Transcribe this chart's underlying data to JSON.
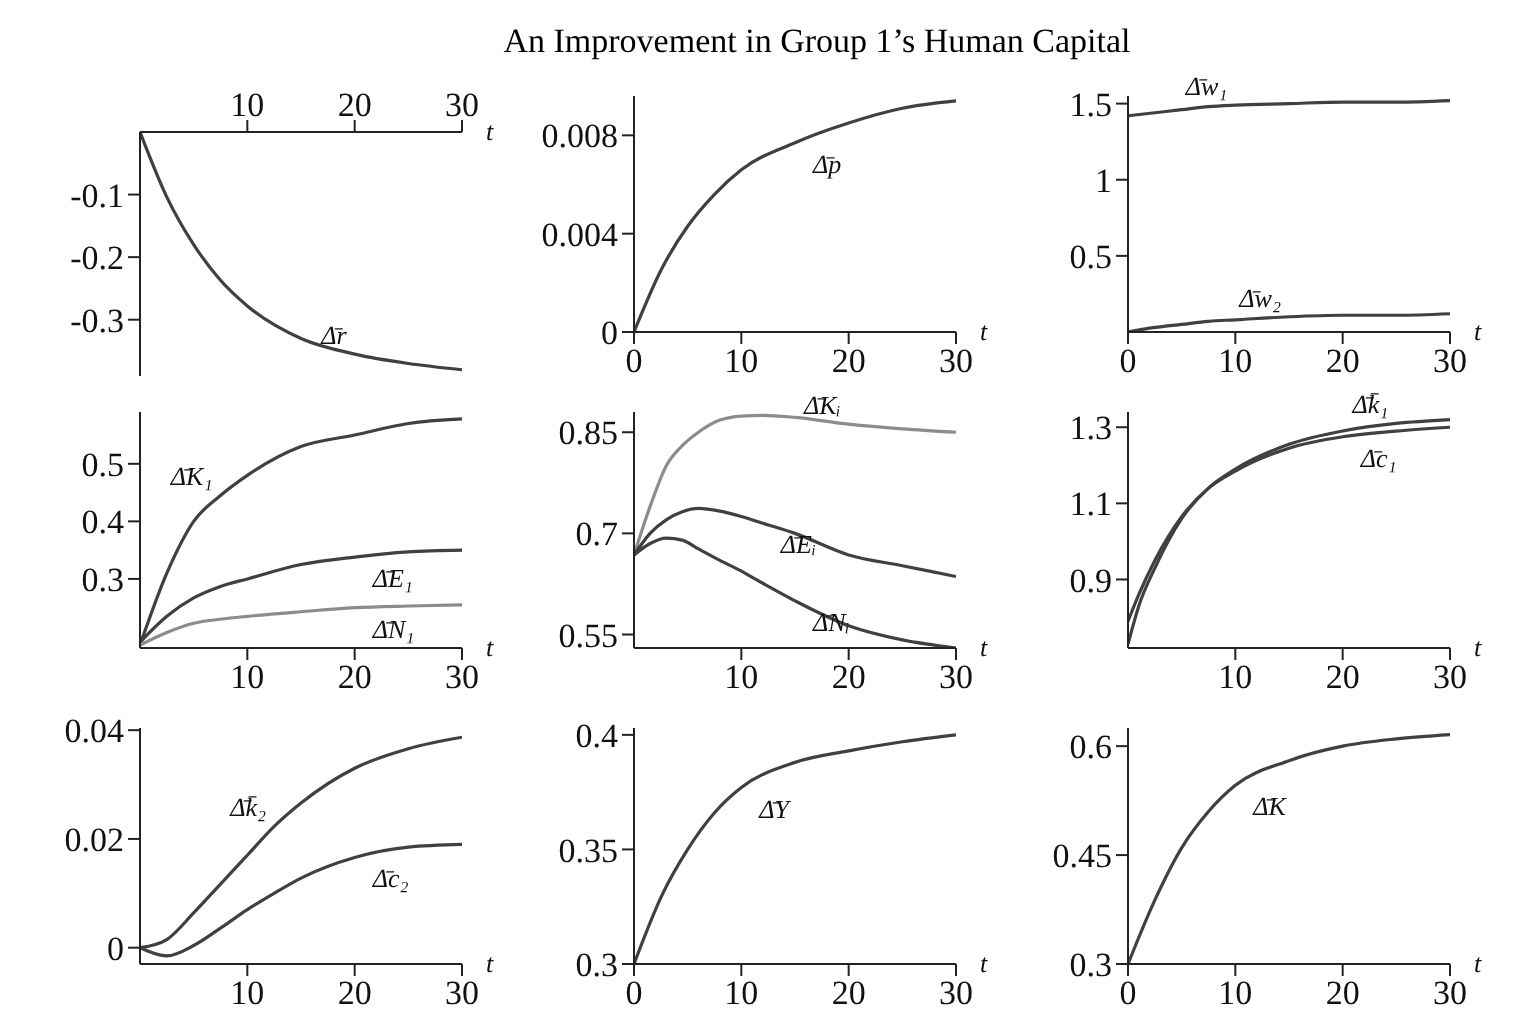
{
  "chart_data": [
    {
      "type": "line",
      "xlabel": "t",
      "x": [
        0,
        2.5,
        5,
        7.5,
        10,
        15,
        20,
        25,
        30
      ],
      "series": [
        {
          "color": "#404040",
          "values": [
            0,
            -0.104,
            -0.18,
            -0.237,
            -0.278,
            -0.33,
            -0.355,
            -0.37,
            -0.38
          ]
        }
      ],
      "xlim": [
        0,
        30
      ],
      "xticks": [
        10,
        20,
        30
      ],
      "ylim": [
        -0.39,
        0
      ],
      "yticks": [
        -0.1,
        -0.2,
        -0.3
      ],
      "annotations": [
        {
          "text": "Δ̄r",
          "x": 20,
          "y": -0.355
        }
      ]
    },
    {
      "type": "line",
      "title": "An Improvement in Group 1’s Human Capital",
      "xlabel": "t",
      "x": [
        0,
        2.5,
        5,
        7.5,
        10,
        15,
        20,
        25,
        30
      ],
      "series": [
        {
          "color": "#404040",
          "values": [
            0,
            0.0025,
            0.0043,
            0.0056,
            0.0066,
            0.0077,
            0.0085,
            0.0091,
            0.0094
          ]
        }
      ],
      "xlim": [
        0,
        30
      ],
      "xticks": [
        0,
        10,
        20,
        30
      ],
      "ylim": [
        0,
        0.0096
      ],
      "yticks": [
        0,
        0.004,
        0.008
      ],
      "annotations": [
        {
          "text": "Δ̄p",
          "x": 15,
          "y": 0.0077
        }
      ]
    },
    {
      "type": "line",
      "xlabel": "t",
      "x": [
        0,
        2.5,
        5,
        7.5,
        10,
        15,
        20,
        25,
        30
      ],
      "series": [
        {
          "color": "#404040",
          "values": [
            1.42,
            1.44,
            1.46,
            1.48,
            1.49,
            1.5,
            1.51,
            1.51,
            1.52
          ]
        },
        {
          "color": "#404040",
          "values": [
            0,
            0.03,
            0.05,
            0.07,
            0.08,
            0.1,
            0.11,
            0.11,
            0.12
          ]
        }
      ],
      "xlim": [
        0,
        30
      ],
      "xticks": [
        0,
        10,
        20,
        30
      ],
      "ylim": [
        0,
        1.55
      ],
      "yticks": [
        0.5,
        1,
        1.5
      ],
      "annotations": [
        {
          "text": "Δ̄w₁",
          "x": 10,
          "y": 1.49
        },
        {
          "text": "Δ̄w₂",
          "x": 15,
          "y": 0.1
        }
      ]
    },
    {
      "type": "line",
      "xlabel": "t",
      "x": [
        0,
        2.5,
        5,
        7.5,
        10,
        15,
        20,
        25,
        30
      ],
      "series": [
        {
          "color": "#404040",
          "values": [
            0.185,
            0.31,
            0.4,
            0.445,
            0.48,
            0.53,
            0.55,
            0.57,
            0.578
          ]
        },
        {
          "color": "#404040",
          "values": [
            0.19,
            0.235,
            0.267,
            0.287,
            0.3,
            0.325,
            0.338,
            0.347,
            0.35
          ]
        },
        {
          "color": "#8c8c8c",
          "values": [
            0.185,
            0.207,
            0.223,
            0.23,
            0.235,
            0.243,
            0.25,
            0.253,
            0.255
          ]
        }
      ],
      "xlim": [
        0,
        30
      ],
      "xticks": [
        10,
        20,
        30
      ],
      "ylim": [
        0.18,
        0.59
      ],
      "yticks": [
        0.3,
        0.4,
        0.5
      ],
      "annotations": [
        {
          "text": "Δ̄K₁",
          "x": 7.5,
          "y": 0.445
        },
        {
          "text": "Δ̄E₁",
          "x": 20,
          "y": 0.338
        },
        {
          "text": "Δ̄N₁",
          "x": 20,
          "y": 0.25
        }
      ]
    },
    {
      "type": "line",
      "xlabel": "t",
      "x": [
        0,
        1.5,
        3,
        4.5,
        6,
        8,
        10,
        12,
        15,
        20,
        25,
        30
      ],
      "series": [
        {
          "color": "#8c8c8c",
          "values": [
            0.668,
            0.74,
            0.8,
            0.83,
            0.85,
            0.868,
            0.874,
            0.875,
            0.872,
            0.862,
            0.855,
            0.85
          ]
        },
        {
          "color": "#404040",
          "values": [
            0.668,
            0.7,
            0.72,
            0.732,
            0.737,
            0.733,
            0.725,
            0.715,
            0.7,
            0.668,
            0.652,
            0.636
          ]
        },
        {
          "color": "#404040",
          "values": [
            0.668,
            0.685,
            0.693,
            0.69,
            0.677,
            0.66,
            0.644,
            0.626,
            0.6,
            0.563,
            0.542,
            0.53
          ]
        }
      ],
      "xlim": [
        0,
        30
      ],
      "xticks": [
        10,
        20,
        30
      ],
      "ylim": [
        0.53,
        0.88
      ],
      "yticks": [
        0.55,
        0.7,
        0.85
      ],
      "annotations": [
        {
          "text": "Δ̄Kᵢ",
          "x": 20,
          "y": 0.862
        },
        {
          "text": "Δ̄Eᵢ",
          "x": 12,
          "y": 0.715
        },
        {
          "text": "Δ̄Nᵢ",
          "x": 15,
          "y": 0.6
        }
      ]
    },
    {
      "type": "line",
      "xlabel": "t",
      "x": [
        0,
        1,
        2.5,
        5,
        7.5,
        10,
        15,
        20,
        25,
        30
      ],
      "series": [
        {
          "color": "#404040",
          "values": [
            0.73,
            0.83,
            0.93,
            1.06,
            1.14,
            1.19,
            1.255,
            1.29,
            1.31,
            1.32
          ]
        },
        {
          "color": "#404040",
          "values": [
            0.79,
            0.86,
            0.95,
            1.065,
            1.14,
            1.185,
            1.245,
            1.275,
            1.29,
            1.3
          ]
        }
      ],
      "xlim": [
        0,
        30
      ],
      "xticks": [
        10,
        20,
        30
      ],
      "ylim": [
        0.72,
        1.34
      ],
      "yticks": [
        0.9,
        1.1,
        1.3
      ],
      "annotations": [
        {
          "text": "Δ̄k̄₁",
          "x": 25,
          "y": 1.31
        },
        {
          "text": "Δ̄c₁",
          "x": 20,
          "y": 1.275
        }
      ]
    },
    {
      "type": "line",
      "xlabel": "t",
      "x": [
        0,
        2.5,
        5,
        7.5,
        10,
        12.5,
        15,
        20,
        25,
        30
      ],
      "series": [
        {
          "color": "#404040",
          "values": [
            0,
            0.0015,
            0.0064,
            0.0117,
            0.017,
            0.0223,
            0.0266,
            0.033,
            0.0366,
            0.0387
          ]
        },
        {
          "color": "#404040",
          "values": [
            0,
            -0.0015,
            0.0004,
            0.0036,
            0.007,
            0.01,
            0.0128,
            0.0166,
            0.0185,
            0.019
          ]
        }
      ],
      "xlim": [
        0,
        30
      ],
      "xticks": [
        10,
        20,
        30
      ],
      "ylim": [
        -0.003,
        0.0404
      ],
      "yticks": [
        0,
        0.02,
        0.04
      ],
      "annotations": [
        {
          "text": "Δ̄k̄₂",
          "x": 12.5,
          "y": 0.0223
        },
        {
          "text": "Δ̄c₂",
          "x": 20,
          "y": 0.0166
        }
      ]
    },
    {
      "type": "line",
      "xlabel": "t",
      "x": [
        0,
        2.5,
        5,
        7.5,
        10,
        15,
        20,
        25,
        30
      ],
      "series": [
        {
          "color": "#404040",
          "values": [
            0.3,
            0.329,
            0.35,
            0.366,
            0.377,
            0.388,
            0.393,
            0.397,
            0.4
          ]
        }
      ],
      "xlim": [
        0,
        30
      ],
      "xticks": [
        0,
        10,
        20,
        30
      ],
      "ylim": [
        0.3,
        0.403
      ],
      "yticks": [
        0.3,
        0.35,
        0.4
      ],
      "annotations": [
        {
          "text": "Δ̄Y",
          "x": 10,
          "y": 0.377
        }
      ]
    },
    {
      "type": "line",
      "xlabel": "t",
      "x": [
        0,
        2.5,
        5,
        7.5,
        10,
        15,
        20,
        25,
        30
      ],
      "series": [
        {
          "color": "#404040",
          "values": [
            0.3,
            0.388,
            0.46,
            0.51,
            0.546,
            0.58,
            0.6,
            0.61,
            0.616
          ]
        }
      ],
      "xlim": [
        0,
        30
      ],
      "xticks": [
        0,
        10,
        20,
        30
      ],
      "ylim": [
        0.3,
        0.625
      ],
      "yticks": [
        0.3,
        0.45,
        0.6
      ],
      "annotations": [
        {
          "text": "Δ̄K",
          "x": 10,
          "y": 0.546
        }
      ]
    }
  ]
}
